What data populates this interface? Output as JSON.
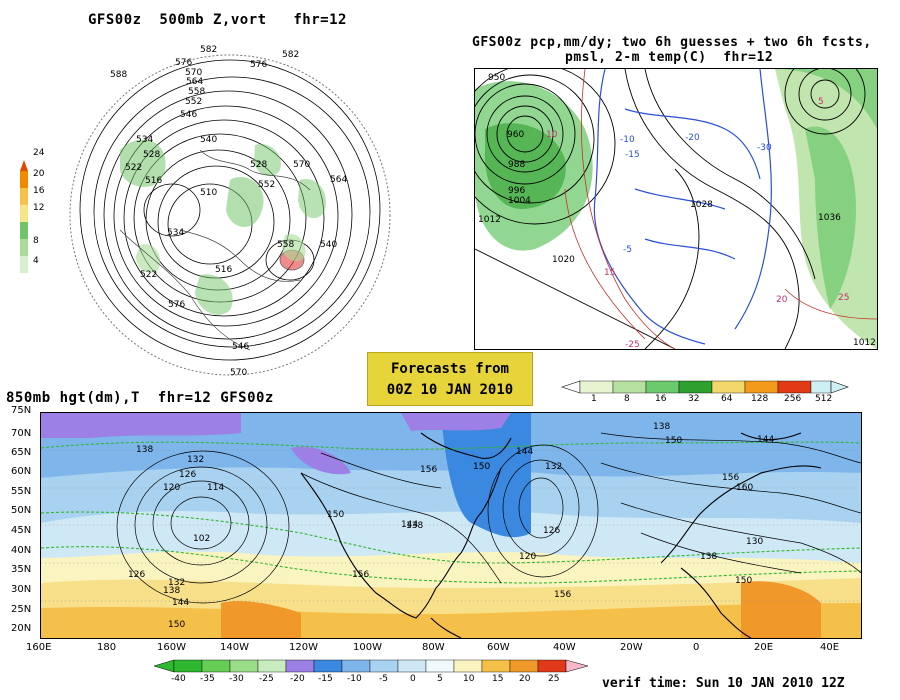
{
  "panel_500mb": {
    "title": "GFS00z  500mb Z,vort   fhr=12",
    "colorbar": {
      "labels": [
        "24",
        "20",
        "16",
        "12",
        "8",
        "4"
      ],
      "colors": [
        "#f08a00",
        "#f6c24a",
        "#f5e68a",
        "#72c46a",
        "#a8dc98",
        "#d8f0cc"
      ]
    },
    "contour_labels": [
      "582",
      "576",
      "570",
      "564",
      "558",
      "552",
      "546",
      "540",
      "534",
      "528",
      "522",
      "516",
      "510",
      "588",
      "576",
      "570",
      "564",
      "582",
      "528",
      "552",
      "534",
      "516",
      "540",
      "558",
      "522",
      "576",
      "570",
      "546"
    ]
  },
  "panel_pcp": {
    "title_line1": "GFS00z pcp,mm/dy; two 6h guesses + two 6h fcsts,",
    "title_line2": "pmsl, 2-m temp(C)  fhr=12",
    "colorbar": {
      "labels": [
        "1",
        "8",
        "16",
        "32",
        "64",
        "128",
        "256",
        "512"
      ],
      "colors": [
        "#e6f5d0",
        "#b5e0a0",
        "#6cc96c",
        "#2ea02e",
        "#f2d86b",
        "#f39a1a",
        "#e23a14",
        "#cdf0f5"
      ]
    },
    "pressure_labels": [
      "950",
      "960",
      "1012",
      "1020",
      "1028",
      "1036",
      "1012",
      "1004",
      "996",
      "988"
    ],
    "temp_labels": [
      "-5",
      "-10",
      "-15",
      "-20",
      "-25",
      "-30",
      "5",
      "10",
      "15",
      "20",
      "25"
    ]
  },
  "banner": {
    "line1": "Forecasts from",
    "line2": "00Z 10 JAN 2010"
  },
  "panel_850mb": {
    "title": "850mb hgt(dm),T  fhr=12 GFS00z",
    "lat_labels": [
      "75N",
      "70N",
      "65N",
      "60N",
      "55N",
      "50N",
      "45N",
      "40N",
      "35N",
      "30N",
      "25N",
      "20N"
    ],
    "lon_labels": [
      "160E",
      "180",
      "160W",
      "140W",
      "120W",
      "100W",
      "80W",
      "60W",
      "40W",
      "20W",
      "0",
      "20E",
      "40E"
    ],
    "height_labels": [
      "138",
      "132",
      "126",
      "120",
      "114",
      "102",
      "126",
      "132",
      "138",
      "144",
      "150",
      "156",
      "150",
      "144",
      "132",
      "126",
      "120",
      "138",
      "144",
      "150",
      "156",
      "138",
      "144",
      "150",
      "156",
      "160",
      "130",
      "138",
      "150",
      "156"
    ],
    "colorbar": {
      "labels": [
        "-40",
        "-35",
        "-30",
        "-25",
        "-20",
        "-15",
        "-10",
        "-5",
        "0",
        "5",
        "10",
        "15",
        "20",
        "25"
      ],
      "colors": [
        "#2fb82f",
        "#66cc55",
        "#99dd88",
        "#c8ecc0",
        "#9c80e6",
        "#3a88e0",
        "#7eb6ec",
        "#a8d2f0",
        "#cfe8f6",
        "#f0fafc",
        "#faf4c0",
        "#f8e08a",
        "#f5c04a",
        "#f0982a",
        "#e03a1a",
        "#f5b8c8"
      ]
    }
  },
  "verif_time": "verif time: Sun 10 JAN 2010 12Z"
}
